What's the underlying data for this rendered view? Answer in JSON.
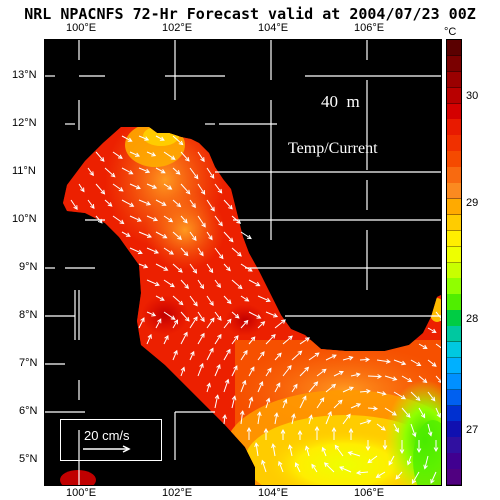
{
  "title": "NRL NPACNFS 72-Hr Forecast valid at 2004/07/23 00Z",
  "depth_label": "40  m",
  "field_label": "Temp/Current",
  "scale_label": "20 cm/s",
  "unit_label": "°C",
  "lon_labels_top": [
    "100°E",
    "102°E",
    "104°E",
    "106°E"
  ],
  "lon_labels_bottom": [
    "100°E",
    "102°E",
    "104°E",
    "106°E"
  ],
  "lat_labels": [
    "13°N",
    "12°N",
    "11°N",
    "10°N",
    "9°N",
    "8°N",
    "7°N",
    "6°N",
    "5°N"
  ],
  "colorbar": {
    "range": [
      26.6,
      30.6
    ],
    "tick_labels": [
      "30",
      "29",
      "28",
      "27"
    ],
    "colors": [
      "#5a0000",
      "#7a0000",
      "#9a0000",
      "#b80000",
      "#d40000",
      "#e81a00",
      "#f03000",
      "#f54a00",
      "#f86a10",
      "#fb8a20",
      "#ffaa00",
      "#ffcc00",
      "#ffee00",
      "#eeff00",
      "#c8ff00",
      "#90ff00",
      "#50ee00",
      "#00cc44",
      "#00c8a0",
      "#00c8e0",
      "#00b0ff",
      "#0090ff",
      "#0060f0",
      "#0030d0",
      "#1010b0",
      "#3010a0",
      "#400090",
      "#500080"
    ]
  },
  "map": {
    "lon_range": [
      99.2,
      107.5
    ],
    "lat_range": [
      4.5,
      13.8
    ],
    "land_color": "#000000",
    "grid_color": "#ffffff",
    "vector_color": "#ffffff"
  }
}
